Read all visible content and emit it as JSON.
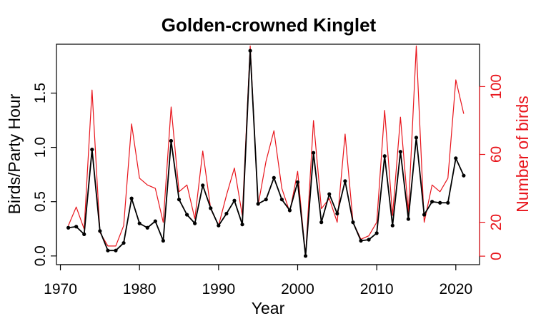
{
  "chart_data": {
    "type": "line",
    "title": "Golden-crowned Kinglet",
    "xlabel": "Year",
    "ylabel": "Birds/Party Hour",
    "y2label": "Number of birds",
    "xlim": [
      1969.5,
      2023
    ],
    "ylim": [
      -0.08,
      1.95
    ],
    "y2lim": [
      -5,
      125
    ],
    "xticks": [
      1970,
      1980,
      1990,
      2000,
      2010,
      2020
    ],
    "xtick_labels": [
      "1970",
      "1980",
      "1990",
      "2000",
      "2010",
      "2020"
    ],
    "yticks": [
      0,
      0.5,
      1,
      1.5
    ],
    "ytick_labels": [
      "0.0",
      "0.5",
      "1.0",
      "1.5"
    ],
    "y2ticks": [
      0,
      20,
      60,
      100
    ],
    "y2tick_labels": [
      "0",
      "20",
      "60",
      "100"
    ],
    "grid": false,
    "colors": {
      "primary": "#000000",
      "secondary": "#e8141b"
    },
    "x": [
      1971,
      1972,
      1973,
      1974,
      1975,
      1976,
      1977,
      1978,
      1979,
      1980,
      1981,
      1982,
      1983,
      1984,
      1985,
      1986,
      1987,
      1988,
      1989,
      1990,
      1991,
      1992,
      1993,
      1994,
      1995,
      1996,
      1997,
      1998,
      1999,
      2000,
      2001,
      2002,
      2003,
      2004,
      2005,
      2006,
      2007,
      2008,
      2009,
      2010,
      2011,
      2012,
      2013,
      2014,
      2015,
      2016,
      2017,
      2018,
      2019,
      2020,
      2021
    ],
    "series": [
      {
        "axis": "left",
        "color": "#000000",
        "markers": true,
        "values": [
          0.26,
          0.27,
          0.2,
          0.98,
          0.23,
          0.05,
          0.05,
          0.12,
          0.53,
          0.3,
          0.26,
          0.32,
          0.14,
          1.06,
          0.52,
          0.38,
          0.3,
          0.65,
          0.44,
          0.28,
          0.39,
          0.51,
          0.29,
          1.89,
          0.48,
          0.52,
          0.72,
          0.52,
          0.42,
          0.68,
          0.0,
          0.95,
          0.31,
          0.57,
          0.39,
          0.69,
          0.31,
          0.14,
          0.15,
          0.21,
          0.92,
          0.28,
          0.96,
          0.34,
          1.09,
          0.38,
          0.5,
          0.49,
          0.49,
          0.9,
          0.74
        ]
      },
      {
        "axis": "right",
        "color": "#e8141b",
        "markers": false,
        "values": [
          18,
          29,
          16,
          98,
          14,
          6,
          6,
          18,
          78,
          46,
          42,
          40,
          20,
          88,
          38,
          42,
          22,
          62,
          28,
          18,
          36,
          52,
          24,
          124,
          30,
          56,
          74,
          40,
          26,
          50,
          0,
          80,
          28,
          34,
          20,
          72,
          20,
          10,
          12,
          20,
          86,
          24,
          82,
          26,
          124,
          20,
          42,
          38,
          46,
          104,
          84
        ]
      }
    ]
  }
}
